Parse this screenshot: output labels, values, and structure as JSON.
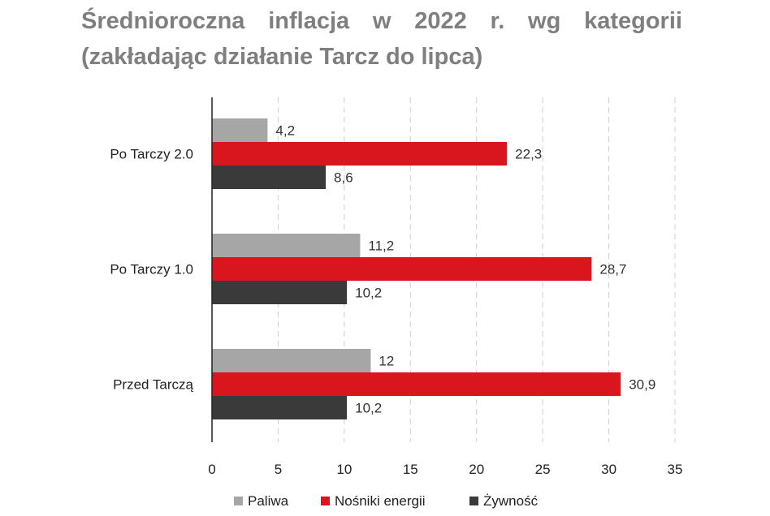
{
  "title_words": [
    "Średnioroczna",
    "inflacja",
    "w",
    "2022",
    "r.",
    "wg",
    "kategorii"
  ],
  "subtitle": "(zakładając działanie Tarcz do lipca)",
  "chart_data": {
    "type": "bar",
    "orientation": "horizontal",
    "categories": [
      "Po Tarczy 2.0",
      "Po Tarczy 1.0",
      "Przed Tarczą"
    ],
    "series": [
      {
        "name": "Paliwa",
        "color": "#a6a6a6",
        "values": [
          4.2,
          11.2,
          12
        ],
        "labels": [
          "4,2",
          "11,2",
          "12"
        ]
      },
      {
        "name": "Nośniki energii",
        "color": "#d9161e",
        "values": [
          22.3,
          28.7,
          30.9
        ],
        "labels": [
          "22,3",
          "28,7",
          "30,9"
        ]
      },
      {
        "name": "Żywność",
        "color": "#3a3a3a",
        "values": [
          8.6,
          10.2,
          10.2
        ],
        "labels": [
          "8,6",
          "10,2",
          "10,2"
        ]
      }
    ],
    "xlim": [
      0,
      35
    ],
    "xticks": [
      0,
      5,
      10,
      15,
      20,
      25,
      30,
      35
    ],
    "grid": "vertical-dashed",
    "legend_position": "bottom"
  }
}
